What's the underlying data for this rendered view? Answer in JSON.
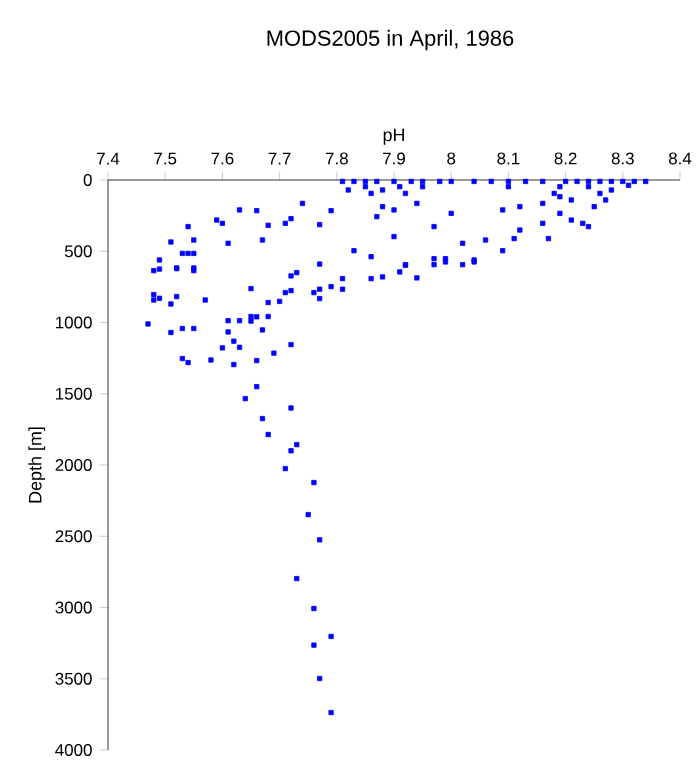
{
  "chart_data": {
    "type": "scatter",
    "title": "MODS2005 in April, 1986",
    "xlabel": "pH",
    "ylabel": "Depth [m]",
    "xlim": [
      7.4,
      8.4
    ],
    "xticks": [
      7.4,
      7.5,
      7.6,
      7.7,
      7.8,
      7.9,
      8,
      8.1,
      8.2,
      8.3,
      8.4
    ],
    "ylim": [
      4000,
      0
    ],
    "yticks": [
      0,
      500,
      1000,
      1500,
      2000,
      2500,
      3000,
      3500,
      4000
    ],
    "marker": "square",
    "series": [
      {
        "color": "#0000ff",
        "x": [
          7.73,
          7.77,
          7.75,
          7.76,
          7.71,
          7.73,
          7.72,
          7.68,
          7.67,
          7.72,
          7.64,
          7.66,
          7.76,
          7.79,
          7.76,
          7.77,
          7.79,
          7.47,
          7.51,
          7.53,
          7.55,
          7.53,
          7.54,
          7.58,
          7.62,
          7.66,
          7.69,
          7.72,
          7.6,
          7.63,
          7.62,
          7.61,
          7.67,
          7.61,
          7.63,
          7.65,
          7.66,
          7.68,
          7.65,
          7.57,
          7.51,
          7.52,
          7.48,
          7.49,
          7.48,
          7.65,
          7.68,
          7.7,
          7.71,
          7.72,
          7.72,
          7.73,
          7.76,
          7.77,
          7.77,
          7.79,
          7.81,
          7.81,
          7.86,
          7.88,
          7.91,
          7.92,
          7.94,
          7.97,
          7.99,
          8.02,
          8.04,
          7.48,
          7.49,
          7.52,
          7.55,
          7.77,
          7.51,
          7.54,
          7.55,
          7.53,
          7.54,
          7.55,
          7.49,
          7.52,
          7.55,
          7.59,
          7.6,
          7.61,
          7.63,
          7.66,
          7.68,
          7.67,
          7.71,
          7.72,
          7.74,
          7.77,
          7.79,
          7.83,
          7.86,
          7.87,
          7.88,
          7.9,
          7.9,
          7.92,
          7.94,
          7.97,
          7.97,
          7.99,
          8.0,
          8.02,
          8.04,
          8.06,
          8.09,
          8.09,
          8.12,
          8.11,
          8.12,
          8.16,
          8.17,
          8.16,
          8.18,
          8.19,
          8.21,
          8.23,
          8.24,
          8.25,
          8.27,
          8.21,
          8.19,
          8.24,
          7.81,
          7.83,
          7.85,
          7.87,
          7.9,
          7.93,
          7.95,
          7.98,
          8.0,
          8.04,
          8.07,
          8.1,
          8.13,
          8.16,
          8.2,
          8.22,
          8.24,
          8.26,
          8.28,
          8.3,
          8.32,
          8.34,
          7.82,
          7.85,
          7.86,
          7.88,
          7.91,
          7.92,
          7.95,
          8.1,
          8.19,
          8.26,
          8.28,
          8.31
        ],
        "values": [
          2797,
          2525,
          2348,
          2123,
          2025,
          1857,
          1900,
          1786,
          1674,
          1600,
          1534,
          1450,
          3007,
          3203,
          3264,
          3498,
          3737,
          1010,
          1070,
          1042,
          1042,
          1253,
          1281,
          1263,
          1295,
          1267,
          1215,
          1155,
          1178,
          1174,
          1131,
          1066,
          1052,
          987,
          987,
          958,
          960,
          958,
          990,
          842,
          870,
          818,
          804,
          830,
          842,
          762,
          860,
          852,
          790,
          776,
          673,
          650,
          790,
          832,
          766,
          748,
          692,
          766,
          692,
          680,
          645,
          594,
          687,
          594,
          575,
          594,
          575,
          636,
          625,
          622,
          636,
          590,
          435,
          327,
          421,
          515,
          515,
          515,
          561,
          617,
          617,
          281,
          304,
          444,
          210,
          215,
          318,
          421,
          304,
          271,
          164,
          313,
          215,
          496,
          538,
          257,
          187,
          397,
          210,
          598,
          164,
          327,
          552,
          552,
          234,
          444,
          561,
          421,
          496,
          210,
          187,
          411,
          351,
          304,
          411,
          164,
          94,
          234,
          281,
          304,
          327,
          187,
          140,
          140,
          117,
          47,
          10,
          10,
          10,
          10,
          10,
          10,
          10,
          10,
          10,
          10,
          10,
          10,
          10,
          10,
          10,
          10,
          10,
          10,
          10,
          10,
          10,
          10,
          70,
          47,
          94,
          70,
          47,
          94,
          47,
          47,
          47,
          94,
          70,
          37
        ]
      }
    ]
  }
}
